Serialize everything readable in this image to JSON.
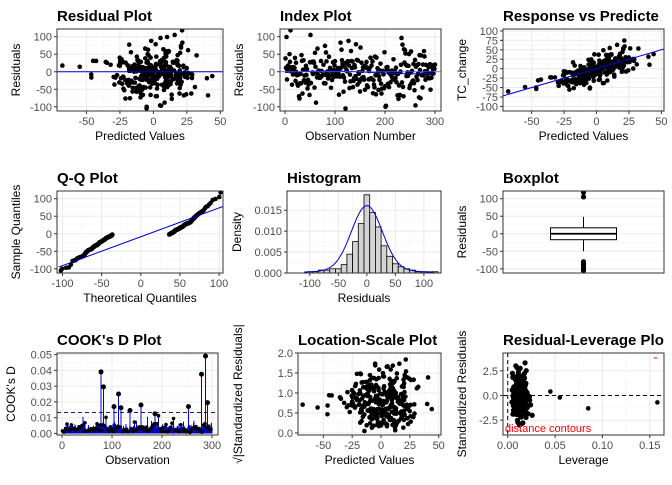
{
  "colors": {
    "point": "#000000",
    "line": "#0000cc",
    "grid": "#ebebeb",
    "border": "#333333",
    "text": "#333333",
    "red": "#ff0000",
    "hist_fill": "#d3d3d3"
  },
  "chart_data": [
    {
      "type": "scatter",
      "title": "Residual Plot",
      "xlabel": "Predicted Values",
      "ylabel": "Residuals",
      "xlim": [
        -72,
        52
      ],
      "ylim": [
        -112,
        122
      ],
      "xticks": [
        -50,
        -25,
        0,
        25,
        50
      ],
      "yticks": [
        -100,
        -50,
        0,
        50,
        100
      ],
      "hline": 0,
      "grid": true,
      "n_points": 300
    },
    {
      "type": "scatter",
      "title": "Index Plot",
      "xlabel": "Observation Number",
      "ylabel": "Residuals",
      "xlim": [
        -10,
        312
      ],
      "ylim": [
        -112,
        122
      ],
      "xticks": [
        0,
        100,
        200,
        300
      ],
      "yticks": [
        -100,
        -50,
        0,
        50,
        100
      ],
      "hline": 0,
      "smooth": "loess",
      "grid": true,
      "n_points": 300
    },
    {
      "type": "scatter",
      "title": "Response vs Predicte",
      "xlabel": "Predicted Values",
      "ylabel": "TC_change",
      "xlim": [
        -72,
        52
      ],
      "ylim": [
        -112,
        105
      ],
      "xticks": [
        -50,
        -25,
        0,
        25,
        50
      ],
      "yticks": [
        -100,
        -75,
        -50,
        -25,
        0,
        25,
        50,
        75,
        100
      ],
      "fit_line": {
        "intercept": 0,
        "slope": 1
      },
      "grid": true,
      "n_points": 300
    },
    {
      "type": "scatter",
      "title": "Q-Q Plot",
      "xlabel": "Theoretical Quantiles",
      "ylabel": "Sample Quantiles",
      "xlim": [
        -107,
        105
      ],
      "ylim": [
        -112,
        122
      ],
      "xticks": [
        -100,
        -50,
        0,
        50,
        100
      ],
      "yticks": [
        -100,
        -50,
        0,
        50,
        100
      ],
      "reference_line": true,
      "grid": true,
      "n_points": 300
    },
    {
      "type": "bar",
      "title": "Histogram",
      "xlabel": "Residuals",
      "ylabel": "Density",
      "xlim": [
        -140,
        130
      ],
      "ylim": [
        0,
        0.0196
      ],
      "xticks": [
        -100,
        -50,
        0,
        50,
        100
      ],
      "yticks": [
        0.0,
        0.005,
        0.01,
        0.015
      ],
      "ytick_labels": [
        "0.000",
        "0.005",
        "0.010",
        "0.015"
      ],
      "bin_starts": [
        -105,
        -95,
        -85,
        -75,
        -65,
        -55,
        -45,
        -35,
        -25,
        -15,
        -5,
        5,
        15,
        25,
        35,
        45,
        55,
        65,
        75,
        85,
        95,
        105,
        115
      ],
      "bin_width": 10,
      "values": [
        0.0003,
        0.0003,
        0.0007,
        0.0007,
        0.001,
        0.001,
        0.002,
        0.0045,
        0.0075,
        0.0118,
        0.0187,
        0.0145,
        0.011,
        0.0065,
        0.004,
        0.0022,
        0.0015,
        0.001,
        0.0007,
        0.0003,
        0.0003,
        0.0003,
        0.0003
      ],
      "density_line": true,
      "grid": true
    },
    {
      "type": "box",
      "title": "Boxplot",
      "xlabel": "",
      "ylabel": "Residuals",
      "ylim": [
        -112,
        122
      ],
      "yticks": [
        -100,
        -50,
        0,
        50,
        100
      ],
      "box": {
        "lower_whisker": -50,
        "q1": -17,
        "median": 0,
        "q3": 17,
        "upper_whisker": 48
      },
      "outliers": [
        118,
        105,
        -80,
        -85,
        -90,
        -96,
        -100,
        -105
      ],
      "grid": true
    },
    {
      "type": "line",
      "title": "COOK's D Plot",
      "xlabel": "Observation",
      "ylabel": "COOK's D",
      "xlim": [
        -10,
        312
      ],
      "ylim": [
        -0.001,
        0.051
      ],
      "xticks": [
        0,
        100,
        200,
        300
      ],
      "yticks": [
        0.0,
        0.01,
        0.02,
        0.03,
        0.04,
        0.05
      ],
      "ytick_labels": [
        "0.00",
        "0.01",
        "0.02",
        "0.03",
        "0.04",
        "0.05"
      ],
      "threshold": 0.0133,
      "grid": true,
      "peaks": [
        [
          77,
          0.039
        ],
        [
          82,
          0.0295
        ],
        [
          103,
          0.017
        ],
        [
          112,
          0.025
        ],
        [
          117,
          0.0163
        ],
        [
          135,
          0.0145
        ],
        [
          157,
          0.018
        ],
        [
          185,
          0.0125
        ],
        [
          252,
          0.017
        ],
        [
          278,
          0.0375
        ],
        [
          286,
          0.049
        ],
        [
          290,
          0.0195
        ]
      ]
    },
    {
      "type": "scatter",
      "title": "Location-Scale Plot",
      "xlabel": "Predicted Values",
      "ylabel": "√|Standardized Residuals|",
      "xlim": [
        -72,
        52
      ],
      "ylim": [
        -0.05,
        2.0
      ],
      "xticks": [
        -50,
        -25,
        0,
        25,
        50
      ],
      "yticks": [
        0.0,
        0.5,
        1.0,
        1.5,
        2.0
      ],
      "ytick_labels": [
        "0.0",
        "0.5",
        "1.0",
        "1.5",
        "2.0"
      ],
      "grid": true,
      "n_points": 300
    },
    {
      "type": "scatter",
      "title": "Residual-Leverage Plo",
      "xlabel": "Leverage",
      "ylabel": "Standardized Residuals",
      "xlim": [
        -0.005,
        0.165
      ],
      "ylim": [
        -4.0,
        4.3
      ],
      "xticks": [
        0.0,
        0.05,
        0.1,
        0.15
      ],
      "yticks": [
        -2.5,
        0.0,
        2.5
      ],
      "xtick_labels": [
        "0.00",
        "0.05",
        "0.10",
        "0.15"
      ],
      "ytick_labels": [
        "-2.5",
        "0.0",
        "2.5"
      ],
      "hline": 0,
      "vline": 0,
      "annotation": "distance contours",
      "grid": true,
      "n_points": 300
    }
  ]
}
